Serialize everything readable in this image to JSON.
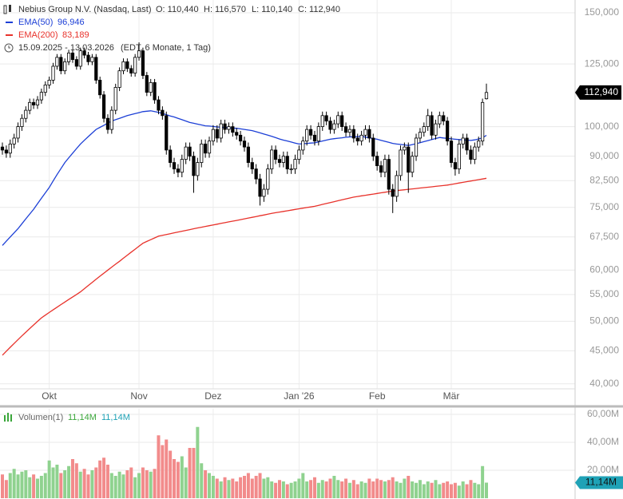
{
  "chart_data": [
    {
      "type": "candlestick",
      "title": "Nebius Group N.V. (Nasdaq, Last)",
      "ohlc_labels": [
        "O: 110,440",
        "H: 116,570",
        "L: 110,140",
        "C: 112,940"
      ],
      "date_range": "15.09.2025 - 13.03.2026",
      "subtitle": "(EDT, 6 Monate, 1 Tag)",
      "categories": [
        null,
        null,
        null,
        null,
        null,
        null,
        null,
        null,
        null,
        null,
        null,
        null,
        "Okt",
        null,
        null,
        null,
        null,
        null,
        null,
        null,
        null,
        null,
        null,
        null,
        null,
        null,
        null,
        null,
        null,
        null,
        null,
        null,
        null,
        null,
        null,
        "Nov",
        null,
        null,
        null,
        null,
        null,
        null,
        null,
        null,
        null,
        null,
        null,
        null,
        null,
        null,
        null,
        null,
        null,
        null,
        "Dez",
        null,
        null,
        null,
        null,
        null,
        null,
        null,
        null,
        null,
        null,
        null,
        null,
        null,
        null,
        null,
        null,
        null,
        null,
        null,
        null,
        null,
        "Jan '26",
        null,
        null,
        null,
        null,
        null,
        null,
        null,
        null,
        null,
        null,
        null,
        null,
        null,
        null,
        null,
        null,
        null,
        null,
        null,
        "Feb",
        null,
        null,
        null,
        null,
        null,
        null,
        null,
        null,
        null,
        null,
        null,
        null,
        null,
        null,
        null,
        null,
        null,
        null,
        "Mär",
        null,
        null,
        null,
        null,
        null,
        null,
        null,
        null,
        null
      ],
      "open": [
        93000,
        92000,
        91000,
        94000,
        96000,
        100000,
        103000,
        106000,
        109000,
        108000,
        110000,
        113000,
        116000,
        118000,
        124000,
        128000,
        122000,
        126000,
        130000,
        127000,
        124000,
        131000,
        129000,
        126000,
        128000,
        118000,
        112000,
        103000,
        99000,
        106000,
        115000,
        122000,
        126000,
        123000,
        121000,
        128000,
        131000,
        120000,
        113000,
        117000,
        110000,
        106000,
        104000,
        92000,
        88000,
        86000,
        85000,
        89000,
        93000,
        90000,
        84000,
        88000,
        94000,
        91000,
        95000,
        99000,
        96000,
        101000,
        99000,
        100000,
        98000,
        97000,
        95000,
        93000,
        88000,
        86000,
        83000,
        78000,
        80000,
        86000,
        92000,
        89000,
        88000,
        90000,
        86000,
        86000,
        89000,
        92000,
        95000,
        99000,
        97000,
        95000,
        100000,
        104000,
        102000,
        99000,
        101000,
        104000,
        100000,
        98000,
        99000,
        96000,
        95000,
        97000,
        99000,
        96000,
        90000,
        87000,
        85000,
        89000,
        80000,
        78000,
        84000,
        92000,
        93000,
        85000,
        90000,
        96000,
        98000,
        100000,
        104000,
        97000,
        101000,
        104000,
        102000,
        95000,
        88000,
        86000,
        94000,
        96000,
        92000,
        89000,
        93000,
        95000,
        110440
      ],
      "high": [
        94500,
        93500,
        95500,
        97500,
        101500,
        104500,
        107500,
        110500,
        110500,
        111500,
        114500,
        117500,
        119500,
        125500,
        129500,
        129500,
        127500,
        131500,
        131500,
        128500,
        132500,
        132500,
        130500,
        129500,
        129500,
        119500,
        113500,
        104500,
        107500,
        116500,
        123500,
        127500,
        127500,
        124500,
        129500,
        135000,
        132500,
        121500,
        118500,
        118500,
        111500,
        107500,
        105500,
        93500,
        89500,
        87500,
        90500,
        94500,
        94500,
        91500,
        89500,
        95500,
        95500,
        96500,
        100500,
        100500,
        102500,
        102500,
        101500,
        101500,
        99500,
        98500,
        96500,
        94500,
        89500,
        87500,
        84500,
        81500,
        87500,
        93500,
        93500,
        90500,
        91500,
        91500,
        87500,
        90500,
        93500,
        96500,
        100500,
        100500,
        98500,
        101500,
        105500,
        105500,
        103500,
        102500,
        105500,
        105500,
        101500,
        100500,
        100500,
        97500,
        98500,
        100500,
        100500,
        97500,
        91500,
        88500,
        90500,
        90500,
        81500,
        85500,
        93500,
        94500,
        94500,
        91500,
        97500,
        99500,
        101500,
        106500,
        105500,
        102500,
        105500,
        105500,
        103500,
        96500,
        89500,
        95500,
        97500,
        97500,
        93500,
        94500,
        96500,
        110500,
        116570
      ],
      "low": [
        90500,
        89500,
        89500,
        92500,
        94500,
        98500,
        101500,
        104500,
        106500,
        106500,
        108500,
        111500,
        114500,
        116500,
        122500,
        120500,
        120500,
        124500,
        125500,
        122500,
        122500,
        127500,
        124500,
        124500,
        116500,
        110500,
        101500,
        97500,
        97500,
        104500,
        113500,
        120500,
        121500,
        119500,
        119500,
        126500,
        118500,
        111500,
        111500,
        108500,
        104500,
        102500,
        90500,
        86500,
        84500,
        83500,
        83500,
        87500,
        88500,
        79000,
        82500,
        86500,
        89500,
        89500,
        93500,
        94500,
        94500,
        97500,
        97500,
        96500,
        95500,
        93500,
        91500,
        86500,
        84500,
        81500,
        75500,
        76500,
        78500,
        84500,
        87500,
        86500,
        86500,
        84500,
        84500,
        84500,
        87500,
        90500,
        93500,
        95500,
        93500,
        93500,
        98500,
        100500,
        97500,
        97500,
        99500,
        98500,
        96500,
        96500,
        94500,
        93500,
        93500,
        95500,
        94500,
        88500,
        85500,
        83500,
        83500,
        78500,
        73500,
        76500,
        82500,
        90500,
        79000,
        83500,
        88500,
        94500,
        96500,
        98500,
        95500,
        95500,
        99500,
        100500,
        93500,
        86500,
        84000,
        84500,
        92500,
        90500,
        87500,
        87500,
        91500,
        93500,
        110140
      ],
      "close": [
        92000,
        91000,
        94000,
        96000,
        100000,
        103000,
        106000,
        109000,
        108000,
        110000,
        113000,
        116000,
        118000,
        124000,
        128000,
        122000,
        126000,
        130000,
        127000,
        124000,
        131000,
        129000,
        126000,
        128000,
        118000,
        112000,
        103000,
        99000,
        106000,
        115000,
        122000,
        126000,
        123000,
        121000,
        128000,
        131000,
        120000,
        113000,
        117000,
        110000,
        106000,
        104000,
        92000,
        88000,
        86000,
        85000,
        89000,
        93000,
        90000,
        84000,
        88000,
        94000,
        91000,
        95000,
        99000,
        96000,
        101000,
        99000,
        100000,
        98000,
        97000,
        95000,
        93000,
        88000,
        86000,
        83000,
        78000,
        80000,
        86000,
        92000,
        89000,
        88000,
        90000,
        86000,
        86000,
        89000,
        92000,
        95000,
        99000,
        97000,
        95000,
        100000,
        104000,
        102000,
        99000,
        101000,
        104000,
        100000,
        98000,
        99000,
        96000,
        95000,
        97000,
        99000,
        96000,
        90000,
        87000,
        85000,
        89000,
        80000,
        78000,
        84000,
        92000,
        93000,
        85000,
        90000,
        96000,
        98000,
        100000,
        104000,
        97000,
        101000,
        104000,
        102000,
        95000,
        88000,
        86000,
        94000,
        96000,
        92000,
        89000,
        93000,
        95000,
        109000,
        112940
      ],
      "up_color": "#ffffff",
      "down_color": "#000000",
      "series": [
        {
          "name": "EMA(50)",
          "color": "#1c3fd6",
          "value_label": "96,946",
          "values": [
            65500,
            66500,
            67500,
            68500,
            69500,
            70750,
            72000,
            73250,
            74500,
            76000,
            77500,
            79000,
            80500,
            82400,
            84300,
            86100,
            88000,
            89500,
            91000,
            92500,
            94000,
            95250,
            96500,
            97750,
            99000,
            99750,
            100500,
            101250,
            102000,
            102500,
            103000,
            103500,
            104000,
            104400,
            104750,
            105100,
            105500,
            105650,
            105800,
            105500,
            105200,
            104800,
            104350,
            103900,
            103500,
            103000,
            102500,
            102000,
            101500,
            101200,
            100900,
            100600,
            100300,
            100200,
            100050,
            99900,
            99800,
            99700,
            99600,
            99500,
            99400,
            99200,
            99000,
            98800,
            98600,
            98200,
            97800,
            97400,
            97000,
            96600,
            96150,
            95700,
            95300,
            95000,
            94650,
            94300,
            94000,
            94100,
            94200,
            94300,
            94400,
            94700,
            95000,
            95300,
            95600,
            95800,
            95950,
            96100,
            96300,
            96400,
            96450,
            96500,
            96600,
            96350,
            96100,
            95850,
            95600,
            95250,
            94900,
            94550,
            94200,
            94000,
            93850,
            93700,
            93500,
            93800,
            94100,
            94450,
            94800,
            95150,
            95500,
            95850,
            96200,
            96050,
            95900,
            95750,
            95600,
            95500,
            95400,
            95300,
            95200,
            95400,
            95700,
            96100,
            96946
          ]
        },
        {
          "name": "EMA(200)",
          "color": "#e8322b",
          "value_label": "83,189",
          "values": [
            44300,
            44930,
            45560,
            46190,
            46820,
            47450,
            48080,
            48710,
            49340,
            49970,
            50600,
            51090,
            51580,
            52070,
            52560,
            53050,
            53540,
            54030,
            54520,
            55010,
            55500,
            56140,
            56780,
            57420,
            58060,
            58700,
            59340,
            59980,
            60620,
            61260,
            61900,
            62580,
            63270,
            63950,
            64630,
            65320,
            66000,
            66430,
            66850,
            67280,
            67700,
            67900,
            68100,
            68300,
            68500,
            68700,
            68900,
            69100,
            69300,
            69500,
            69700,
            69890,
            70080,
            70270,
            70460,
            70650,
            70840,
            71030,
            71220,
            71410,
            71600,
            71800,
            72000,
            72200,
            72400,
            72600,
            72800,
            73000,
            73200,
            73400,
            73600,
            73770,
            73940,
            74110,
            74280,
            74450,
            74620,
            74790,
            74960,
            75130,
            75300,
            75550,
            75800,
            76050,
            76300,
            76550,
            76800,
            77050,
            77300,
            77550,
            77800,
            77970,
            78140,
            78310,
            78480,
            78650,
            78820,
            78990,
            79160,
            79330,
            79500,
            79620,
            79740,
            79860,
            79990,
            80110,
            80230,
            80350,
            80470,
            80590,
            80710,
            80840,
            80960,
            81080,
            81200,
            81400,
            81600,
            81800,
            82000,
            82200,
            82390,
            82590,
            82790,
            82990,
            83189
          ]
        }
      ],
      "last": {
        "value": 112940,
        "label": "112,940"
      },
      "log_scale": true,
      "grid": true,
      "ylim": [
        39300,
        157000
      ],
      "yticks": [
        {
          "value": 40000,
          "label": "40,000"
        },
        {
          "value": 45000,
          "label": "45,000"
        },
        {
          "value": 50000,
          "label": "50,000"
        },
        {
          "value": 55000,
          "label": "55,000"
        },
        {
          "value": 60000,
          "label": "60,000"
        },
        {
          "value": 67500,
          "label": "67,500"
        },
        {
          "value": 75000,
          "label": "75,000"
        },
        {
          "value": 82500,
          "label": "82,500"
        },
        {
          "value": 90000,
          "label": "90,000"
        },
        {
          "value": 100000,
          "label": "100,000"
        },
        {
          "value": 125000,
          "label": "125,000"
        },
        {
          "value": 150000,
          "label": "150,000"
        }
      ]
    },
    {
      "type": "bar",
      "title": "Volumen(1)",
      "legend_values": [
        "11,14M",
        "11,14M"
      ],
      "values": [
        17,
        13,
        18,
        21,
        17,
        19,
        20,
        15,
        17,
        14,
        16,
        18,
        27,
        22,
        24,
        18,
        20,
        23,
        28,
        25,
        19,
        21,
        17,
        20,
        22,
        27,
        29,
        24,
        18,
        16,
        19,
        17,
        20,
        22,
        15,
        18,
        22,
        20,
        19,
        21,
        45,
        38,
        42,
        34,
        28,
        26,
        30,
        22,
        36,
        36,
        51,
        25,
        20,
        18,
        16,
        14,
        12,
        15,
        13,
        14,
        12,
        15,
        16,
        18,
        14,
        16,
        18,
        14,
        15,
        12,
        11,
        13,
        12,
        10,
        11,
        12,
        14,
        18,
        12,
        13,
        15,
        11,
        13,
        12,
        14,
        16,
        13,
        12,
        14,
        11,
        13,
        10,
        12,
        11,
        14,
        12,
        14,
        13,
        12,
        13,
        15,
        12,
        11,
        14,
        16,
        12,
        11,
        13,
        10,
        12,
        11,
        13,
        10,
        11,
        12,
        10,
        11,
        9,
        12,
        10,
        13,
        11,
        10,
        23,
        11.14
      ],
      "up_color": "#8fd28f",
      "down_color": "#f28b8b",
      "legend_color": "#3aa63a",
      "badge_color": "#1fa2b6",
      "last": {
        "value": 11.14,
        "label": "11,14M"
      },
      "grid": true,
      "ylim": [
        0,
        64
      ],
      "yticks": [
        {
          "value": 20,
          "label": "20,00M"
        },
        {
          "value": 40,
          "label": "40,00M"
        },
        {
          "value": 60,
          "label": "60,00M"
        }
      ]
    }
  ]
}
